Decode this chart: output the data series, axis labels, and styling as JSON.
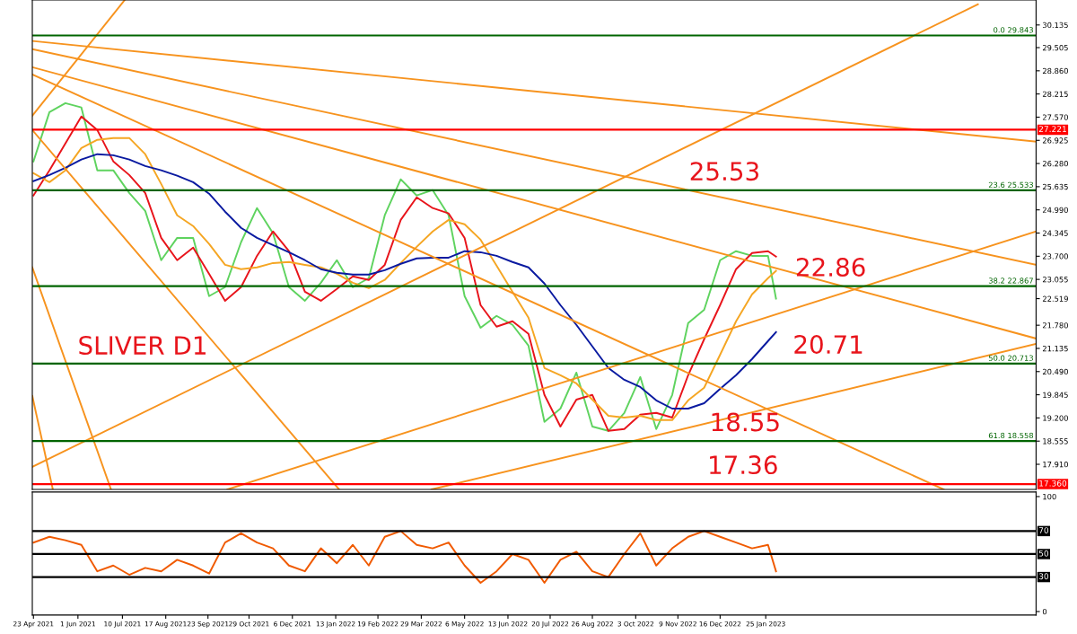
{
  "chart_data": [
    {
      "type": "line",
      "xlim": [
        "2021-04-22",
        "2023-09-19"
      ],
      "ylim": [
        17.21,
        30.83
      ],
      "grid": false,
      "tick_labels": "y",
      "yticks": [
        30.135,
        29.505,
        {
          "value": 28.86,
          "label": "28.860"
        },
        28.215,
        {
          "value": 27.57,
          "label": "27.570"
        },
        26.925,
        {
          "value": 26.28,
          "label": "26.280"
        },
        25.635,
        {
          "value": 24.99,
          "label": "24.990"
        },
        24.345,
        {
          "value": 23.7,
          "label": "23.700"
        },
        23.055,
        22.519,
        {
          "value": 21.78,
          "label": "21.780"
        },
        21.135,
        {
          "value": 20.49,
          "label": "20.490"
        },
        19.845,
        {
          "value": 19.2,
          "label": "19.200"
        },
        18.555,
        {
          "value": 17.91,
          "label": "17.910"
        }
      ],
      "x": [
        "2021-04-23",
        "2021-05-07",
        "2021-05-21",
        "2021-06-04",
        "2021-06-18",
        "2021-07-02",
        "2021-07-16",
        "2021-07-30",
        "2021-08-13",
        "2021-08-27",
        "2021-09-10",
        "2021-09-24",
        "2021-10-08",
        "2021-10-22",
        "2021-11-05",
        "2021-11-19",
        "2021-12-03",
        "2021-12-17",
        "2021-12-31",
        "2022-01-14",
        "2022-01-28",
        "2022-02-11",
        "2022-02-25",
        "2022-03-11",
        "2022-03-25",
        "2022-04-08",
        "2022-04-22",
        "2022-05-06",
        "2022-05-20",
        "2022-06-03",
        "2022-06-17",
        "2022-07-01",
        "2022-07-15",
        "2022-07-29",
        "2022-08-12",
        "2022-08-26",
        "2022-09-09",
        "2022-09-23",
        "2022-10-07",
        "2022-10-21",
        "2022-11-04",
        "2022-11-18",
        "2022-12-02",
        "2022-12-16",
        "2022-12-30",
        "2023-01-13",
        "2023-01-27",
        "2023-02-03"
      ],
      "series": [
        {
          "color": "#5fd35f",
          "values": [
            26.34,
            27.71,
            27.96,
            27.84,
            26.09,
            26.09,
            25.46,
            24.96,
            23.59,
            24.21,
            24.21,
            22.59,
            22.84,
            24.09,
            25.04,
            24.34,
            22.84,
            22.46,
            22.96,
            23.59,
            22.84,
            23.09,
            24.84,
            25.84,
            25.39,
            25.54,
            24.84,
            22.59,
            21.71,
            22.04,
            21.79,
            21.21,
            19.09,
            19.46,
            20.46,
            18.96,
            18.84,
            19.34,
            20.34,
            18.89,
            19.84,
            21.84,
            22.21,
            23.59,
            23.84,
            23.71,
            23.71,
            22.52
          ]
        },
        {
          "color": "#e8141b",
          "values": [
            25.39,
            26.09,
            26.84,
            27.59,
            27.21,
            26.34,
            25.96,
            25.46,
            24.21,
            23.59,
            23.94,
            23.21,
            22.46,
            22.84,
            23.71,
            24.39,
            23.84,
            22.71,
            22.46,
            22.79,
            23.14,
            23.04,
            23.46,
            24.71,
            25.34,
            25.04,
            24.89,
            24.21,
            22.34,
            21.74,
            21.89,
            21.54,
            19.84,
            18.96,
            19.71,
            19.84,
            18.84,
            18.89,
            19.29,
            19.34,
            19.21,
            20.39,
            21.39,
            22.34,
            23.34,
            23.79,
            23.84,
            23.69
          ]
        },
        {
          "color": "#f5a623",
          "values": [
            26.01,
            25.76,
            26.09,
            26.71,
            26.94,
            26.99,
            26.99,
            26.54,
            25.71,
            24.84,
            24.54,
            24.04,
            23.46,
            23.34,
            23.39,
            23.51,
            23.54,
            23.46,
            23.39,
            23.21,
            22.96,
            22.81,
            23.04,
            23.51,
            23.96,
            24.39,
            24.71,
            24.59,
            24.16,
            23.44,
            22.71,
            21.99,
            20.59,
            20.39,
            20.16,
            19.71,
            19.26,
            19.21,
            19.26,
            19.14,
            19.14,
            19.69,
            20.04,
            20.96,
            21.89,
            22.64,
            23.09,
            23.29
          ]
        },
        {
          "color": "#0a1aa0",
          "values": [
            25.79,
            25.96,
            26.16,
            26.39,
            26.54,
            26.51,
            26.39,
            26.21,
            26.09,
            25.94,
            25.76,
            25.44,
            24.94,
            24.49,
            24.21,
            24.01,
            23.81,
            23.59,
            23.34,
            23.24,
            23.19,
            23.19,
            23.31,
            23.49,
            23.64,
            23.66,
            23.66,
            23.84,
            23.81,
            23.71,
            23.54,
            23.39,
            22.94,
            22.34,
            21.79,
            21.19,
            20.59,
            20.26,
            20.06,
            19.69,
            19.46,
            19.46,
            19.61,
            20.01,
            20.39,
            20.84,
            21.34,
            21.59
          ]
        },
        {
          "type": "line",
          "color": "#f7931e",
          "x": [
            "2021-04-22",
            "2021-07-12"
          ],
          "values": [
            27.61,
            30.83
          ]
        },
        {
          "type": "line",
          "color": "#f7931e",
          "x": [
            "2021-04-22",
            "2023-07-30"
          ],
          "values": [
            17.84,
            30.71
          ]
        },
        {
          "type": "line",
          "color": "#f7931e",
          "x": [
            "2021-10-10",
            "2023-09-19"
          ],
          "values": [
            17.21,
            24.39
          ]
        },
        {
          "type": "line",
          "color": "#f7931e",
          "x": [
            "2022-04-07",
            "2023-09-19"
          ],
          "values": [
            17.21,
            21.26
          ]
        },
        {
          "type": "line",
          "color": "#f7931e",
          "x": [
            "2021-04-22",
            "2023-09-19"
          ],
          "values": [
            29.69,
            26.89
          ]
        },
        {
          "type": "line",
          "color": "#f7931e",
          "x": [
            "2021-04-22",
            "2023-09-19"
          ],
          "values": [
            29.46,
            23.46
          ]
        },
        {
          "type": "line",
          "color": "#f7931e",
          "x": [
            "2021-04-22",
            "2023-09-19"
          ],
          "values": [
            28.96,
            21.41
          ]
        },
        {
          "type": "line",
          "color": "#f7931e",
          "x": [
            "2021-04-22",
            "2023-06-30"
          ],
          "values": [
            28.76,
            17.21
          ]
        },
        {
          "type": "line",
          "color": "#f7931e",
          "x": [
            "2021-04-22",
            "2022-01-16"
          ],
          "values": [
            27.21,
            17.21
          ]
        },
        {
          "type": "line",
          "color": "#f7931e",
          "x": [
            "2021-04-22",
            "2021-06-30"
          ],
          "values": [
            23.39,
            17.21
          ]
        },
        {
          "type": "line",
          "color": "#f7931e",
          "x": [
            "2021-04-22",
            "2021-05-10"
          ],
          "values": [
            19.81,
            17.21
          ]
        }
      ],
      "ref_lines": [
        {
          "axis": "y",
          "value": 29.843,
          "label": "0.0 29.843",
          "color": "#006400"
        },
        {
          "axis": "y",
          "value": 25.533,
          "label": "23.6 25.533",
          "color": "#006400"
        },
        {
          "axis": "y",
          "value": 22.867,
          "label": "38.2 22.867",
          "color": "#006400"
        },
        {
          "axis": "y",
          "value": 20.713,
          "label": "50.0 20.713",
          "color": "#006400"
        },
        {
          "axis": "y",
          "value": 18.558,
          "label": "61.8 18.558",
          "color": "#006400"
        },
        {
          "axis": "y",
          "value": 27.221,
          "label": "27.221",
          "color": "#ff0000"
        },
        {
          "axis": "y",
          "value": 17.36,
          "label": "17.360",
          "color": "#ff0000"
        }
      ],
      "annotations": [
        "SLIVER D1",
        {
          "text": "25.53",
          "x": "2022-12-20",
          "y": 25.53
        },
        {
          "text": "22.86",
          "x": "2023-03-23",
          "y": 22.86
        },
        {
          "text": "20.71",
          "x": "2023-03-21",
          "y": 20.71
        },
        {
          "text": "18.55",
          "x": "2023-01-07",
          "y": 18.55
        },
        {
          "text": "17.36",
          "x": "2023-01-05",
          "y": 17.36
        }
      ]
    },
    {
      "type": "line",
      "xlim": [
        "2021-04-22",
        "2023-09-19"
      ],
      "ylim": [
        -3,
        104
      ],
      "grid": false,
      "xticks": [
        {
          "value": "2021-04-23",
          "label": "23 Apr 2021"
        },
        {
          "value": "2021-06-01",
          "label": "1 Jun 2021"
        },
        {
          "value": "2021-07-10",
          "label": "10 Jul 2021"
        },
        {
          "value": "2021-08-17",
          "label": "17 Aug 2021"
        },
        {
          "value": "2021-09-23",
          "label": "23 Sep 2021"
        },
        {
          "value": "2021-10-29",
          "label": "29 Oct 2021"
        },
        {
          "value": "2021-12-06",
          "label": "6 Dec 2021"
        },
        {
          "value": "2022-01-13",
          "label": "13 Jan 2022"
        },
        {
          "value": "2022-02-19",
          "label": "19 Feb 2022"
        },
        {
          "value": "2022-03-29",
          "label": "29 Mar 2022"
        },
        {
          "value": "2022-05-06",
          "label": "6 May 2022"
        },
        {
          "value": "2022-06-13",
          "label": "13 Jun 2022"
        },
        {
          "value": "2022-07-20",
          "label": "20 Jul 2022"
        },
        {
          "value": "2022-08-26",
          "label": "26 Aug 2022"
        },
        {
          "value": "2022-10-03",
          "label": "3 Oct 2022"
        },
        {
          "value": "2022-11-09",
          "label": "9 Nov 2022"
        },
        {
          "value": "2022-12-16",
          "label": "16 Dec 2022"
        },
        {
          "value": "2023-01-25",
          "label": "25 Jan 2023"
        }
      ],
      "yticks": [
        0,
        100
      ],
      "x": [
        "2021-04-23",
        "2021-05-07",
        "2021-05-21",
        "2021-06-04",
        "2021-06-18",
        "2021-07-02",
        "2021-07-16",
        "2021-07-30",
        "2021-08-13",
        "2021-08-27",
        "2021-09-10",
        "2021-09-24",
        "2021-10-08",
        "2021-10-22",
        "2021-11-05",
        "2021-11-19",
        "2021-12-03",
        "2021-12-17",
        "2021-12-31",
        "2022-01-14",
        "2022-01-28",
        "2022-02-11",
        "2022-02-25",
        "2022-03-11",
        "2022-03-25",
        "2022-04-08",
        "2022-04-22",
        "2022-05-06",
        "2022-05-20",
        "2022-06-03",
        "2022-06-17",
        "2022-07-01",
        "2022-07-15",
        "2022-07-29",
        "2022-08-12",
        "2022-08-26",
        "2022-09-09",
        "2022-09-23",
        "2022-10-07",
        "2022-10-21",
        "2022-11-04",
        "2022-11-18",
        "2022-12-02",
        "2022-12-16",
        "2022-12-30",
        "2023-01-13",
        "2023-01-27",
        "2023-02-03"
      ],
      "series": [
        {
          "color": "#f05a00",
          "values": [
            60,
            65,
            62,
            58,
            35,
            40,
            32,
            38,
            35,
            45,
            40,
            33,
            60,
            68,
            60,
            55,
            40,
            35,
            55,
            42,
            58,
            40,
            65,
            70,
            58,
            55,
            60,
            40,
            25,
            35,
            50,
            45,
            25,
            45,
            52,
            35,
            30,
            50,
            68,
            40,
            55,
            65,
            70,
            65,
            60,
            55,
            58,
            35
          ]
        }
      ],
      "ref_lines": [
        {
          "axis": "y",
          "value": 70,
          "label": "70",
          "color": "#000000"
        },
        {
          "axis": "y",
          "value": 50,
          "label": "50",
          "color": "#000000"
        },
        {
          "axis": "y",
          "value": 30,
          "label": "30",
          "color": "#000000"
        }
      ]
    }
  ]
}
